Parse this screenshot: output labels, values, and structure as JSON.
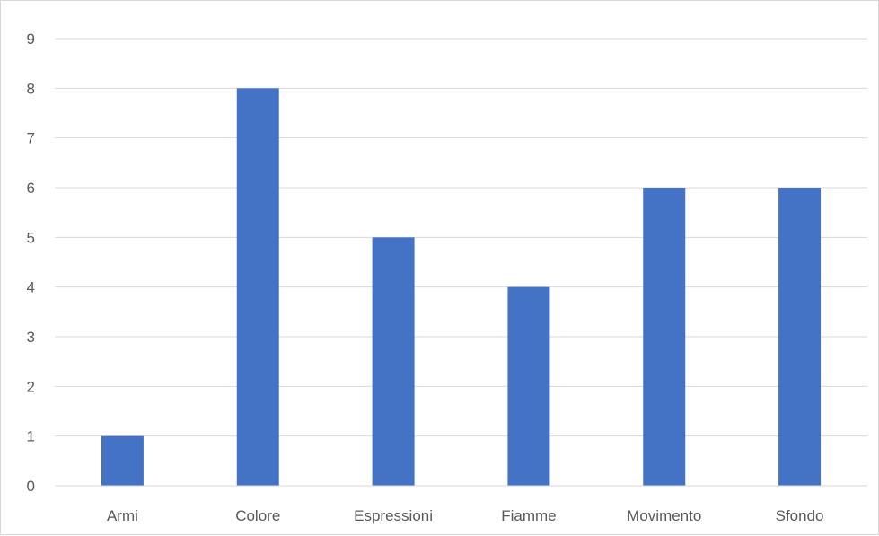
{
  "chart_data": {
    "type": "bar",
    "title": "",
    "xlabel": "",
    "ylabel": "",
    "categories": [
      "Armi",
      "Colore",
      "Espressioni",
      "Fiamme",
      "Movimento",
      "Sfondo"
    ],
    "values": [
      1,
      8,
      5,
      4,
      6,
      6
    ],
    "ylim": [
      0,
      9
    ],
    "yticks": [
      "0",
      "1",
      "2",
      "3",
      "4",
      "5",
      "6",
      "7",
      "8",
      "9"
    ],
    "grid": true,
    "legend": "none",
    "bar_color": "#4472c4"
  }
}
